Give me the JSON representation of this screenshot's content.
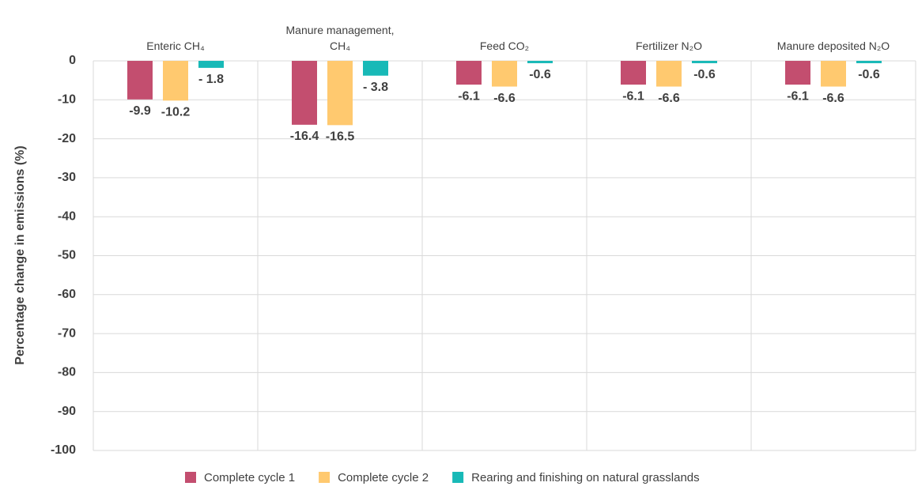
{
  "chart_data": {
    "type": "bar",
    "y_label": "Percentage change in emissions (%)",
    "categories": [
      "Enteric CH₄",
      "Manure management,\nCH₄",
      "Feed CO₂",
      "Fertilizer N₂O",
      "Manure deposited N₂O"
    ],
    "series": [
      {
        "name": "Complete cycle 1",
        "color": "#c34e6f",
        "values": [
          -9.9,
          -16.4,
          -6.1,
          -6.1,
          -6.1
        ],
        "value_labels": [
          "-9.9",
          "-16.4",
          "-6.1",
          "-6.1",
          "-6.1"
        ]
      },
      {
        "name": "Complete cycle 2",
        "color": "#ffc96f",
        "values": [
          -10.2,
          -16.5,
          -6.6,
          -6.6,
          -6.6
        ],
        "value_labels": [
          "-10.2",
          "-16.5",
          "-6.6",
          "-6.6",
          "-6.6"
        ]
      },
      {
        "name": "Rearing and finishing on natural grasslands",
        "color": "#18b9b7",
        "values": [
          -1.8,
          -3.8,
          -0.6,
          -0.6,
          -0.6
        ],
        "value_labels": [
          "- 1.8",
          "- 3.8",
          "-0.6",
          "-0.6",
          "-0.6"
        ]
      }
    ],
    "ylim": [
      -100,
      0
    ],
    "yticks": [
      0,
      -10,
      -20,
      -30,
      -40,
      -50,
      -60,
      -70,
      -80,
      -90,
      -100
    ],
    "grid": true
  }
}
